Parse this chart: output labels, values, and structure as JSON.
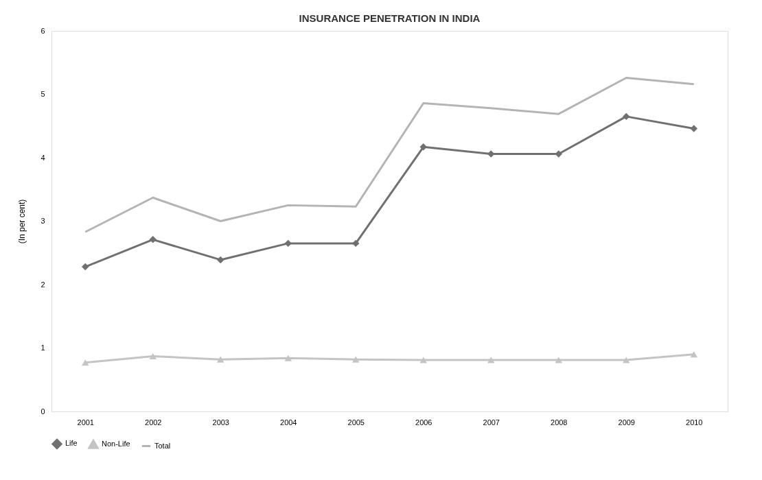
{
  "chart_data": {
    "type": "line",
    "title": "INSURANCE PENETRATION IN INDIA",
    "ylabel": "(In per cent)",
    "categories": [
      "2001",
      "2002",
      "2003",
      "2004",
      "2005",
      "2006",
      "2007",
      "2008",
      "2009",
      "2010"
    ],
    "series": [
      {
        "name": "Life",
        "color": "#707070",
        "marker": "diamond",
        "values": [
          2.28,
          2.71,
          2.39,
          2.65,
          2.65,
          4.17,
          4.06,
          4.06,
          4.65,
          4.46
        ]
      },
      {
        "name": "Non-Life",
        "color": "#c4c4c4",
        "marker": "triangle",
        "values": [
          0.77,
          0.87,
          0.82,
          0.84,
          0.82,
          0.81,
          0.81,
          0.81,
          0.81,
          0.9
        ]
      },
      {
        "name": "Total",
        "color": "#b4b4b4",
        "marker": "none",
        "values": [
          2.83,
          3.37,
          3.0,
          3.25,
          3.23,
          4.86,
          4.78,
          4.69,
          5.26,
          5.16
        ]
      }
    ],
    "ylim": [
      0,
      6
    ],
    "yticks": [
      0,
      1,
      2,
      3,
      4,
      5,
      6
    ],
    "grid": false,
    "legend": "bottom"
  }
}
